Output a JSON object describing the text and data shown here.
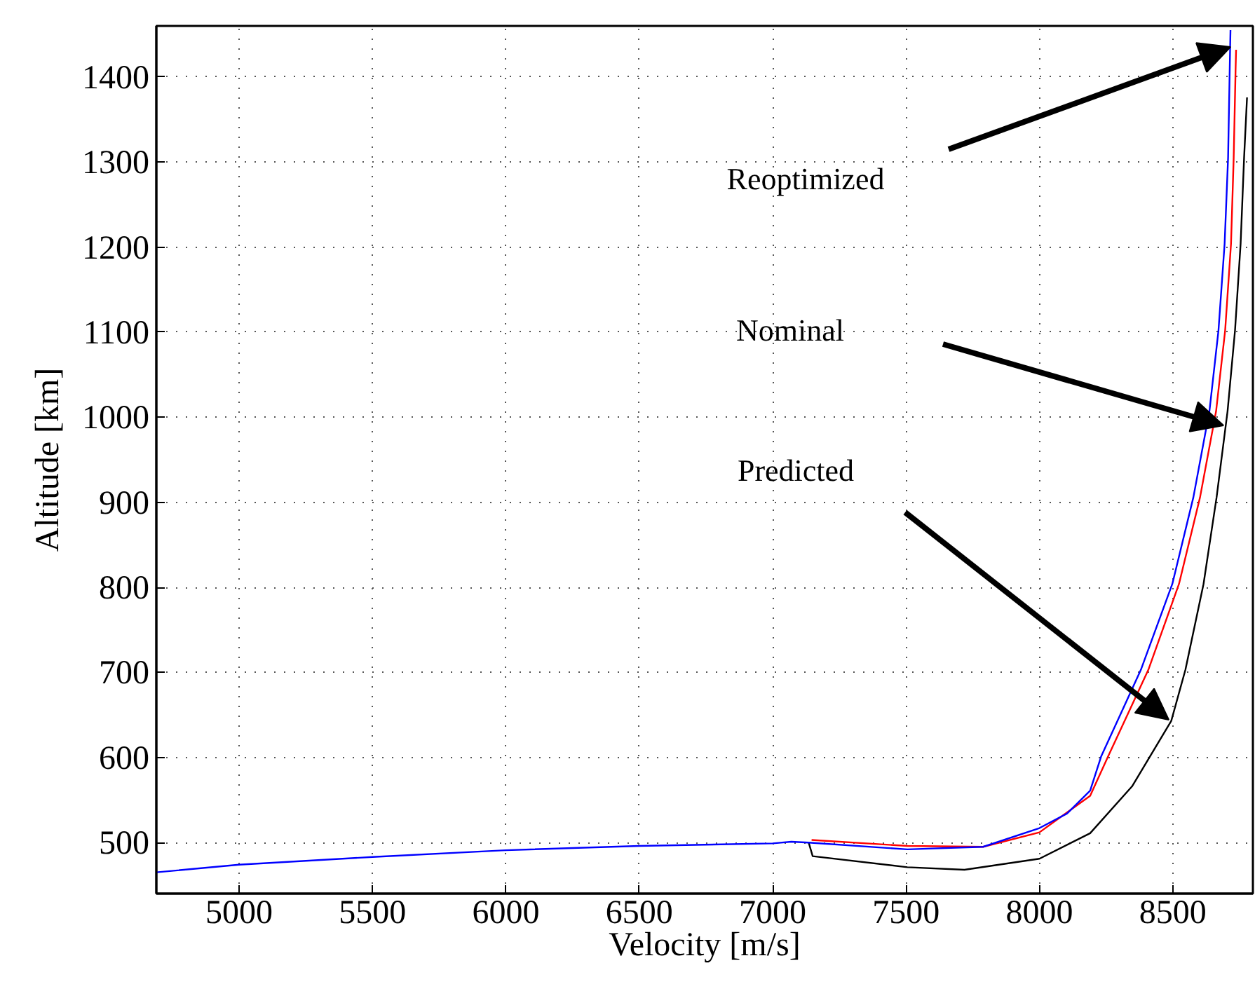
{
  "chart_data": {
    "type": "line",
    "xlabel": "Velocity [m/s]",
    "ylabel": "Altitude [km]",
    "xlim": [
      4690,
      8800
    ],
    "ylim": [
      440,
      1460
    ],
    "xticks": [
      5000,
      5500,
      6000,
      6500,
      7000,
      7500,
      8000,
      8500
    ],
    "yticks": [
      500,
      600,
      700,
      800,
      900,
      1000,
      1100,
      1200,
      1300,
      1400
    ],
    "grid": true,
    "line_style": "solid",
    "marker": "none",
    "series": [
      {
        "color": "#000000",
        "x": [
          7135,
          7150,
          7505,
          7719,
          8000,
          8190,
          8347,
          8494,
          8547,
          8615,
          8664,
          8705,
          8733,
          8754,
          8767,
          8778
        ],
        "values": [
          500,
          484,
          471,
          468,
          481,
          511,
          566,
          643,
          703,
          804,
          906,
          1007,
          1102,
          1204,
          1305,
          1376
        ]
      },
      {
        "color": "#ff0000",
        "x": [
          7146,
          7505,
          7789,
          8000,
          8190,
          8257,
          8408,
          8523,
          8602,
          8662,
          8696,
          8718,
          8728,
          8735,
          8737
        ],
        "values": [
          503,
          496,
          495,
          512,
          555,
          601,
          703,
          804,
          906,
          1007,
          1102,
          1204,
          1305,
          1407,
          1432
        ]
      },
      {
        "color": "#0000ff",
        "x": [
          4690,
          5000,
          5500,
          6000,
          6500,
          7000,
          7070,
          7135,
          7505,
          7789,
          8000,
          8103,
          8190,
          8231,
          8380,
          8498,
          8577,
          8637,
          8671,
          8694,
          8707,
          8713,
          8716
        ],
        "values": [
          465,
          474,
          483,
          491,
          496,
          499,
          501,
          500,
          492,
          495,
          517,
          534,
          561,
          601,
          703,
          804,
          906,
          1007,
          1102,
          1204,
          1305,
          1407,
          1455
        ]
      }
    ],
    "annotations": [
      "Reoptimized",
      "Nominal",
      "Predicted"
    ]
  }
}
